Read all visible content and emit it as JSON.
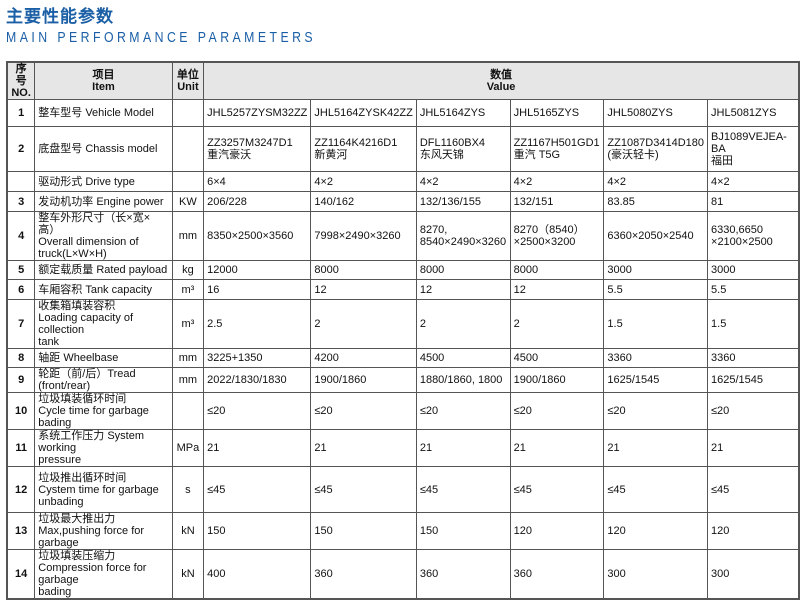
{
  "title_cn": "主要性能参数",
  "title_en": "MAIN PERFORMANCE PARAMETERS",
  "headers": {
    "no": "序号\nNO.",
    "item": "项目\nItem",
    "unit": "单位\nUnit",
    "value": "数值\nValue"
  },
  "rows": [
    {
      "no": "1",
      "item": "整车型号 Vehicle Model",
      "unit": "",
      "values": [
        "JHL5257ZYSM32ZZ",
        "JHL5164ZYSK42ZZ",
        "JHL5164ZYS",
        "JHL5165ZYS",
        "JHL5080ZYS",
        "JHL5081ZYS"
      ]
    },
    {
      "no": "2",
      "item": "底盘型号 Chassis model",
      "unit": "",
      "values": [
        "ZZ3257M3247D1\n重汽豪沃",
        "ZZ1164K4216D1\n新黄河",
        "DFL1160BX4\n东风天锦",
        "ZZ1167H501GD1\n重汽 T5G",
        "ZZ1087D3414D180\n(豪沃轻卡)",
        "BJ1089VEJEA-BA\n福田"
      ]
    },
    {
      "no": "",
      "item": "驱动形式 Drive type",
      "unit": "",
      "values": [
        "6×4",
        "4×2",
        "4×2",
        "4×2",
        "4×2",
        "4×2"
      ]
    },
    {
      "no": "3",
      "item": "发动机功率 Engine power",
      "unit": "KW",
      "values": [
        "206/228",
        "140/162",
        "132/136/155",
        "132/151",
        "83.85",
        "81"
      ]
    },
    {
      "no": "4",
      "item": "整车外形尺寸（长×宽×高）\nOverall dimension of\ntruck(L×W×H)",
      "unit": "mm",
      "values": [
        "8350×2500×3560",
        "7998×2490×3260",
        "8270,\n8540×2490×3260",
        "8270（8540）\n×2500×3200",
        "6360×2050×2540",
        "6330,6650\n×2100×2500"
      ]
    },
    {
      "no": "5",
      "item": "额定载质量 Rated payload",
      "unit": "kg",
      "values": [
        "12000",
        "8000",
        "8000",
        "8000",
        "3000",
        "3000"
      ]
    },
    {
      "no": "6",
      "item": "车厢容积 Tank capacity",
      "unit": "m³",
      "values": [
        "16",
        "12",
        "12",
        "12",
        "5.5",
        "5.5"
      ]
    },
    {
      "no": "7",
      "item": "收集箱填装容积\n Loading capacity of collection\ntank",
      "unit": "m³",
      "values": [
        "2.5",
        "2",
        "2",
        "2",
        "1.5",
        "1.5"
      ]
    },
    {
      "no": "8",
      "item": "轴距 Wheelbase",
      "unit": "mm",
      "values": [
        "3225+1350",
        "4200",
        "4500",
        "4500",
        "3360",
        "3360"
      ]
    },
    {
      "no": "9",
      "item": "轮距（前/后）Tread (front/rear)",
      "unit": "mm",
      "values": [
        "2022/1830/1830",
        "1900/1860",
        "1880/1860, 1800",
        "1900/1860",
        "1625/1545",
        "1625/1545"
      ]
    },
    {
      "no": "10",
      "item": "垃圾填装循环时间\n Cycle time for garbage bading",
      "unit": "",
      "values": [
        "≤20",
        "≤20",
        "≤20",
        "≤20",
        "≤20",
        "≤20"
      ]
    },
    {
      "no": "11",
      "item": "系统工作压力 System working\npressure",
      "unit": "MPa",
      "values": [
        "21",
        "21",
        "21",
        "21",
        "21",
        "21"
      ]
    },
    {
      "no": "12",
      "item": "垃圾推出循环时间\n Cystem time for garbage\nunbading",
      "unit": "s",
      "values": [
        "≤45",
        "≤45",
        "≤45",
        "≤45",
        "≤45",
        "≤45"
      ]
    },
    {
      "no": "13",
      "item": "垃圾最大推出力\n Max,pushing force for garbage",
      "unit": "kN",
      "values": [
        "150",
        "150",
        "150",
        "120",
        "120",
        "120"
      ]
    },
    {
      "no": "14",
      "item": "垃圾填装压缩力\n Compression force for garbage\nbading",
      "unit": "kN",
      "values": [
        "400",
        "360",
        "360",
        "360",
        "300",
        "300"
      ]
    }
  ]
}
